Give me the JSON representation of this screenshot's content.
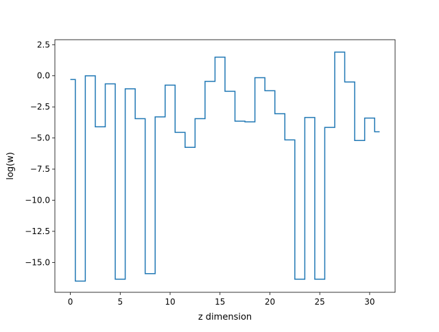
{
  "chart_data": {
    "type": "line",
    "drawstyle": "steps-mid",
    "title": "",
    "xlabel": "z dimension",
    "ylabel": "log(w)",
    "xlim": [
      -1.55,
      32.55
    ],
    "ylim": [
      -17.4,
      2.9
    ],
    "xticks": [
      0,
      5,
      10,
      15,
      20,
      25,
      30
    ],
    "xtick_labels": [
      "0",
      "5",
      "10",
      "15",
      "20",
      "25",
      "30"
    ],
    "yticks": [
      2.5,
      0.0,
      -2.5,
      -5.0,
      -7.5,
      -10.0,
      -12.5,
      -15.0
    ],
    "ytick_labels": [
      "2.5",
      "0.0",
      "−2.5",
      "−5.0",
      "−7.5",
      "−10.0",
      "−12.5",
      "−15.0"
    ],
    "grid": false,
    "legend": "none",
    "series": [
      {
        "color": "#1f77b4",
        "x": [
          0,
          1,
          2,
          3,
          4,
          5,
          6,
          7,
          8,
          9,
          10,
          11,
          12,
          13,
          14,
          15,
          16,
          17,
          18,
          19,
          20,
          21,
          22,
          23,
          24,
          25,
          26,
          27,
          28,
          29,
          30,
          31
        ],
        "values": [
          -0.3,
          -16.5,
          0.0,
          -4.1,
          -0.65,
          -16.35,
          -1.05,
          -3.45,
          -15.9,
          -3.3,
          -0.75,
          -4.55,
          -5.75,
          -3.45,
          -0.45,
          1.5,
          -1.25,
          -3.65,
          -3.7,
          -0.15,
          -1.2,
          -3.05,
          -5.15,
          -16.35,
          -3.35,
          -16.35,
          -4.15,
          1.9,
          -0.5,
          -5.2,
          -3.4,
          -4.5
        ]
      }
    ]
  }
}
